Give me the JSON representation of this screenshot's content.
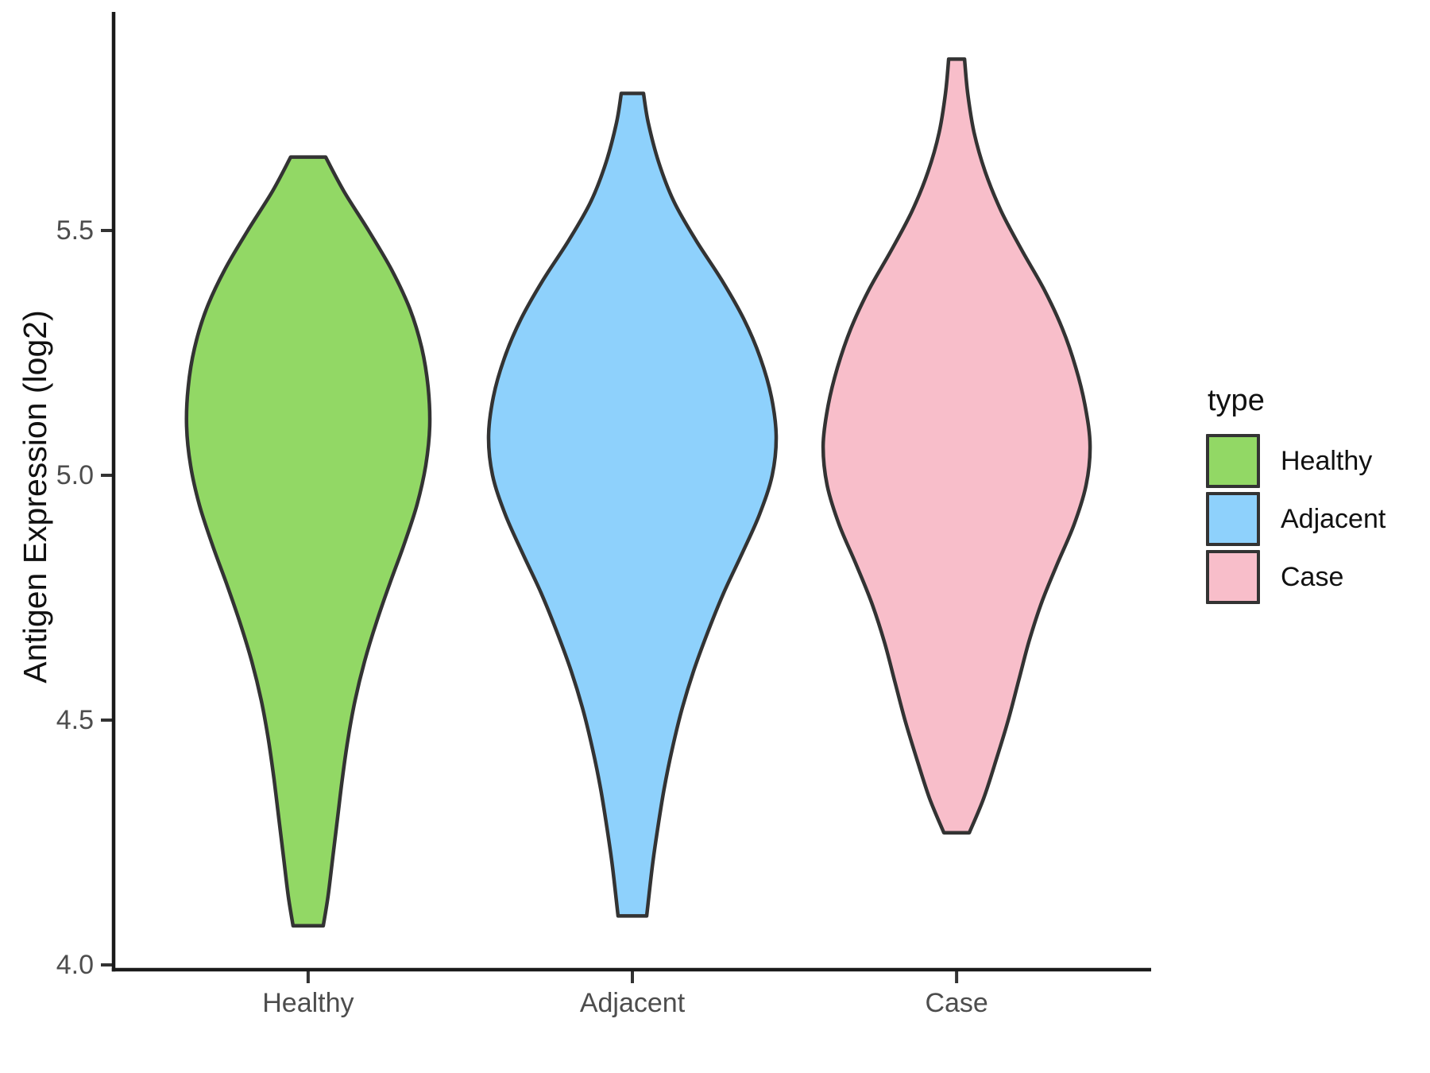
{
  "chart_data": {
    "type": "violin",
    "title": "",
    "xlabel": "",
    "ylabel": "Antigen Expression (log2)",
    "categories": [
      "Healthy",
      "Adjacent",
      "Case"
    ],
    "y_axis": {
      "ticks": [
        {
          "value": 4.0,
          "label": "4.0"
        },
        {
          "value": 4.5,
          "label": "4.5"
        },
        {
          "value": 5.0,
          "label": "5.0"
        },
        {
          "value": 5.5,
          "label": "5.5"
        }
      ],
      "range": [
        3.99,
        5.95
      ],
      "grid": false
    },
    "legend": {
      "title": "type",
      "position": "right",
      "entries": [
        {
          "label": "Healthy",
          "color": "#92D865"
        },
        {
          "label": "Adjacent",
          "color": "#8ED1FC"
        },
        {
          "label": "Case",
          "color": "#F8BECA"
        }
      ]
    },
    "style": {
      "outline_color": "#333333",
      "axis_color": "#1a1a1a",
      "tick_label_color": "#4d4d4d"
    },
    "series": [
      {
        "name": "Healthy",
        "fill": "#92D865",
        "min": 4.08,
        "max": 5.65,
        "widest_at": 5.1,
        "profile": [
          [
            5.65,
            22
          ],
          [
            5.58,
            45
          ],
          [
            5.5,
            76
          ],
          [
            5.42,
            105
          ],
          [
            5.34,
            128
          ],
          [
            5.26,
            143
          ],
          [
            5.18,
            151
          ],
          [
            5.1,
            153
          ],
          [
            5.02,
            148
          ],
          [
            4.94,
            137
          ],
          [
            4.86,
            121
          ],
          [
            4.78,
            103
          ],
          [
            4.7,
            86
          ],
          [
            4.62,
            71
          ],
          [
            4.54,
            59
          ],
          [
            4.46,
            50
          ],
          [
            4.38,
            43
          ],
          [
            4.3,
            37
          ],
          [
            4.22,
            31
          ],
          [
            4.14,
            25
          ],
          [
            4.08,
            19
          ]
        ]
      },
      {
        "name": "Adjacent",
        "fill": "#8ED1FC",
        "min": 4.1,
        "max": 5.78,
        "widest_at": 5.08,
        "profile": [
          [
            5.78,
            14
          ],
          [
            5.72,
            20
          ],
          [
            5.64,
            33
          ],
          [
            5.56,
            52
          ],
          [
            5.48,
            80
          ],
          [
            5.4,
            112
          ],
          [
            5.32,
            140
          ],
          [
            5.24,
            161
          ],
          [
            5.16,
            175
          ],
          [
            5.08,
            181
          ],
          [
            5.0,
            176
          ],
          [
            4.92,
            160
          ],
          [
            4.84,
            138
          ],
          [
            4.76,
            115
          ],
          [
            4.68,
            95
          ],
          [
            4.6,
            77
          ],
          [
            4.52,
            62
          ],
          [
            4.44,
            50
          ],
          [
            4.36,
            40
          ],
          [
            4.28,
            32
          ],
          [
            4.2,
            25
          ],
          [
            4.1,
            18
          ]
        ]
      },
      {
        "name": "Case",
        "fill": "#F8BECA",
        "min": 4.27,
        "max": 5.85,
        "widest_at": 5.06,
        "profile": [
          [
            5.85,
            10
          ],
          [
            5.78,
            14
          ],
          [
            5.7,
            22
          ],
          [
            5.62,
            36
          ],
          [
            5.54,
            56
          ],
          [
            5.46,
            82
          ],
          [
            5.38,
            110
          ],
          [
            5.3,
            133
          ],
          [
            5.22,
            150
          ],
          [
            5.14,
            162
          ],
          [
            5.06,
            168
          ],
          [
            4.98,
            163
          ],
          [
            4.9,
            148
          ],
          [
            4.82,
            127
          ],
          [
            4.74,
            107
          ],
          [
            4.66,
            91
          ],
          [
            4.58,
            78
          ],
          [
            4.5,
            65
          ],
          [
            4.42,
            50
          ],
          [
            4.34,
            34
          ],
          [
            4.27,
            16
          ]
        ]
      }
    ],
    "profile_units": {
      "value": "log2 expression",
      "halfwidth": "screen px"
    }
  }
}
